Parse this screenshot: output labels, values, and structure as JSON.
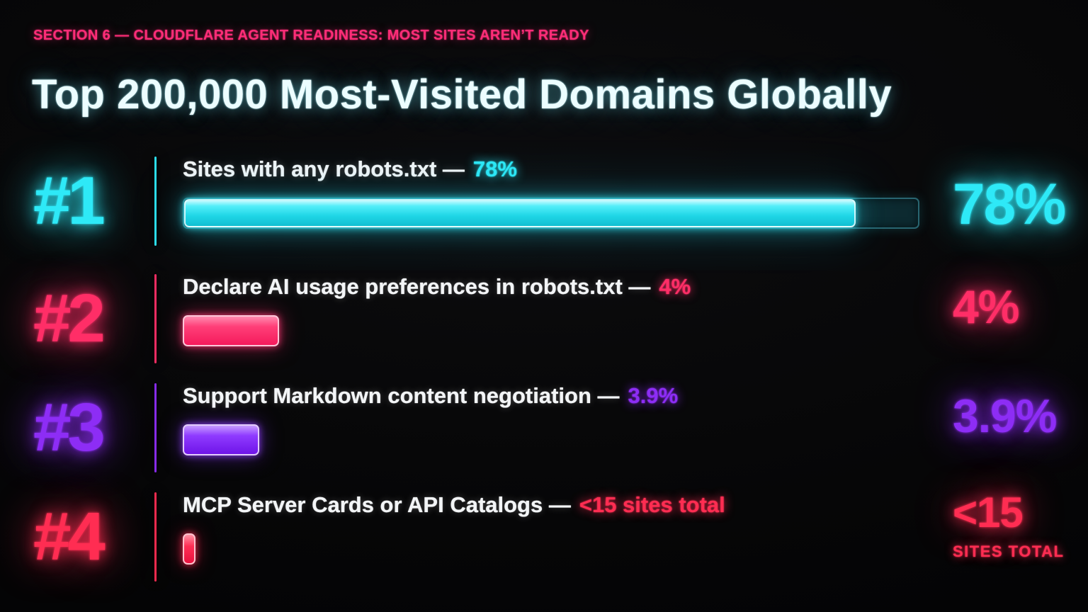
{
  "header": {
    "eyebrow": "SECTION 6 — CLOUDFLARE AGENT READINESS: MOST SITES AREN’T READY",
    "title": "Top 200,000 Most-Visited Domains Globally"
  },
  "rows": [
    {
      "rank": "#1",
      "label": "Sites with any robots.txt —",
      "value": "78%",
      "big_value": "78%",
      "caption": "",
      "color": "#2ee9f7"
    },
    {
      "rank": "#2",
      "label": "Declare AI usage preferences in robots.txt —",
      "value": "4%",
      "big_value": "4%",
      "caption": "",
      "color": "#ff2e67"
    },
    {
      "rank": "#3",
      "label": "Support Markdown content negotiation —",
      "value": "3.9%",
      "big_value": "3.9%",
      "caption": "",
      "color": "#8d2df5"
    },
    {
      "rank": "#4",
      "label": "MCP Server Cards or API Catalogs —",
      "value": "<15 sites total",
      "big_value": "<15",
      "caption": "SITES TOTAL",
      "color": "#ff2d52"
    }
  ],
  "chart_data": {
    "type": "bar",
    "orientation": "horizontal",
    "title": "Top 200,000 Most-Visited Domains Globally",
    "subtitle": "SECTION 6 — CLOUDFLARE AGENT READINESS: MOST SITES AREN’T READY",
    "categories": [
      "Sites with any robots.txt",
      "Declare AI usage preferences in robots.txt",
      "Support Markdown content negotiation",
      "MCP Server Cards or API Catalogs"
    ],
    "values": [
      78,
      4,
      3.9,
      null
    ],
    "value_labels": [
      "78%",
      "4%",
      "3.9%",
      "<15 sites total"
    ],
    "unit": "percent of top 200,000 most-visited domains",
    "xlim": [
      0,
      100
    ],
    "grid": false,
    "legend": "none",
    "colors": [
      "#2ee9f7",
      "#ff2e67",
      "#8d2df5",
      "#ff2d52"
    ]
  }
}
